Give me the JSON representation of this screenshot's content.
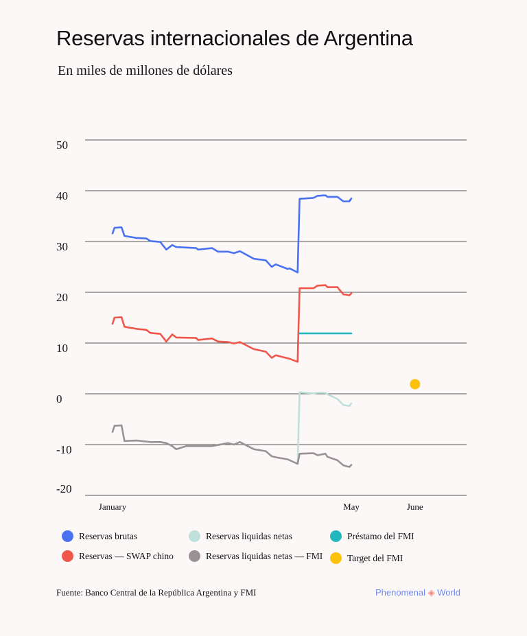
{
  "title": "Reservas internacionales de Argentina",
  "subtitle": "En miles de millones de dólares",
  "source": "Fuente: Banco Central de la República Argentina y FMI",
  "brand": {
    "left": "Phenomenal",
    "symbol": "◈",
    "right": "World"
  },
  "chart_data": {
    "type": "line",
    "title": "Reservas internacionales de Argentina",
    "subtitle": "En miles de millones de dólares",
    "xlabel": "",
    "ylabel": "",
    "x_unit": "days since January 1",
    "xlim": [
      -14,
      178
    ],
    "ylim": [
      -20,
      50
    ],
    "yticks": [
      50,
      40,
      30,
      20,
      10,
      0,
      -10,
      -20
    ],
    "xticks": [
      {
        "label": "January",
        "x": 0
      },
      {
        "label": "May",
        "x": 120
      },
      {
        "label": "June",
        "x": 152
      }
    ],
    "grid": true,
    "legend_position": "bottom",
    "series": [
      {
        "name": "Reservas brutas",
        "color": "#4a72f0",
        "type": "line",
        "points": [
          [
            0,
            31.6
          ],
          [
            1,
            32.7
          ],
          [
            4.5,
            32.8
          ],
          [
            6,
            31.1
          ],
          [
            12,
            30.7
          ],
          [
            17,
            30.6
          ],
          [
            19,
            30.1
          ],
          [
            24,
            29.9
          ],
          [
            27,
            28.4
          ],
          [
            30,
            29.3
          ],
          [
            32,
            28.9
          ],
          [
            42,
            28.7
          ],
          [
            43,
            28.4
          ],
          [
            50,
            28.7
          ],
          [
            53,
            28.0
          ],
          [
            58,
            28.0
          ],
          [
            61,
            27.7
          ],
          [
            64,
            28.1
          ],
          [
            71,
            26.6
          ],
          [
            77,
            26.3
          ],
          [
            80,
            25.0
          ],
          [
            82,
            25.5
          ],
          [
            88,
            24.6
          ],
          [
            89,
            24.7
          ],
          [
            93,
            23.9
          ],
          [
            94,
            38.4
          ],
          [
            101,
            38.6
          ],
          [
            103,
            39.0
          ],
          [
            107,
            39.1
          ],
          [
            108,
            38.8
          ],
          [
            113,
            38.8
          ],
          [
            116,
            37.9
          ],
          [
            119,
            37.9
          ],
          [
            120,
            38.5
          ]
        ]
      },
      {
        "name": "Reservas — SWAP chino",
        "color": "#f0564a",
        "type": "line",
        "points": [
          [
            0,
            13.8
          ],
          [
            1,
            15.0
          ],
          [
            4.5,
            15.1
          ],
          [
            6,
            13.2
          ],
          [
            12,
            12.8
          ],
          [
            17,
            12.6
          ],
          [
            19,
            12.0
          ],
          [
            24,
            11.8
          ],
          [
            27,
            10.3
          ],
          [
            30,
            11.7
          ],
          [
            32,
            11.1
          ],
          [
            42,
            11.0
          ],
          [
            43,
            10.6
          ],
          [
            50,
            10.9
          ],
          [
            53,
            10.3
          ],
          [
            58,
            10.2
          ],
          [
            61,
            9.9
          ],
          [
            64,
            10.2
          ],
          [
            71,
            8.8
          ],
          [
            77,
            8.3
          ],
          [
            80,
            7.1
          ],
          [
            82,
            7.6
          ],
          [
            88,
            7.0
          ],
          [
            89,
            6.9
          ],
          [
            93,
            6.3
          ],
          [
            94,
            20.8
          ],
          [
            101,
            20.8
          ],
          [
            103,
            21.3
          ],
          [
            107,
            21.4
          ],
          [
            108,
            21.0
          ],
          [
            113,
            21.0
          ],
          [
            116,
            19.6
          ],
          [
            119,
            19.4
          ],
          [
            120,
            19.8
          ]
        ]
      },
      {
        "name": "Reservas liquidas netas",
        "color": "#c0e0dc",
        "type": "line",
        "points": [
          [
            93,
            -13.8
          ],
          [
            94,
            0.3
          ],
          [
            101,
            0.1
          ],
          [
            103,
            0.2
          ],
          [
            107,
            0.2
          ],
          [
            108,
            -0.1
          ],
          [
            113,
            -1.0
          ],
          [
            116,
            -2.2
          ],
          [
            119,
            -2.4
          ],
          [
            120,
            -1.9
          ]
        ]
      },
      {
        "name": "Reservas liquidas netas — FMI",
        "color": "#9a9194",
        "type": "line",
        "points": [
          [
            0,
            -7.5
          ],
          [
            1,
            -6.3
          ],
          [
            4.5,
            -6.2
          ],
          [
            6,
            -9.3
          ],
          [
            12,
            -9.2
          ],
          [
            17,
            -9.4
          ],
          [
            19,
            -9.5
          ],
          [
            24,
            -9.5
          ],
          [
            27,
            -9.7
          ],
          [
            30,
            -10.3
          ],
          [
            32,
            -10.9
          ],
          [
            37,
            -10.3
          ],
          [
            42,
            -10.3
          ],
          [
            50,
            -10.3
          ],
          [
            58,
            -9.7
          ],
          [
            61,
            -10.0
          ],
          [
            64,
            -9.5
          ],
          [
            71,
            -10.9
          ],
          [
            77,
            -11.3
          ],
          [
            80,
            -12.3
          ],
          [
            82,
            -12.5
          ],
          [
            88,
            -12.9
          ],
          [
            93,
            -13.8
          ],
          [
            94,
            -11.8
          ],
          [
            101,
            -11.7
          ],
          [
            103,
            -12.1
          ],
          [
            107,
            -11.8
          ],
          [
            108,
            -12.4
          ],
          [
            113,
            -13.1
          ],
          [
            116,
            -14.1
          ],
          [
            119,
            -14.4
          ],
          [
            120,
            -14.0
          ]
        ]
      },
      {
        "name": "Préstamo del FMI",
        "color": "#22b8c0",
        "type": "line",
        "points": [
          [
            94,
            11.9
          ],
          [
            120,
            11.9
          ]
        ]
      },
      {
        "name": "Target del FMI",
        "color": "#fcc10a",
        "type": "point",
        "points": [
          [
            152,
            1.9
          ]
        ]
      }
    ]
  }
}
